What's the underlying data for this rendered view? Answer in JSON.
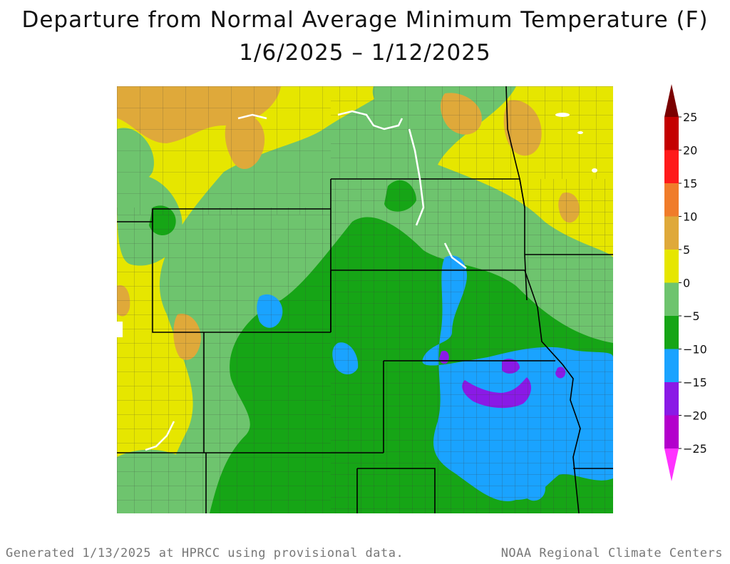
{
  "title_line1": "Departure from Normal Average Minimum Temperature (F)",
  "title_line2": "1/6/2025 – 1/12/2025",
  "footer_left": "Generated 1/13/2025 at HPRCC using provisional data.",
  "footer_right": "NOAA Regional Climate Centers",
  "legend": {
    "bins": [
      {
        "from": 25,
        "to": 30,
        "color": "#7a0000"
      },
      {
        "from": 20,
        "to": 25,
        "color": "#c40000"
      },
      {
        "from": 15,
        "to": 20,
        "color": "#ff1a1a"
      },
      {
        "from": 10,
        "to": 15,
        "color": "#f07c2a"
      },
      {
        "from": 5,
        "to": 10,
        "color": "#dfa93a"
      },
      {
        "from": 0,
        "to": 5,
        "color": "#e6e600"
      },
      {
        "from": -5,
        "to": 0,
        "color": "#6ec46e"
      },
      {
        "from": -10,
        "to": -5,
        "color": "#16a516"
      },
      {
        "from": -15,
        "to": -10,
        "color": "#1aa3ff"
      },
      {
        "from": -20,
        "to": -15,
        "color": "#8a1ae6"
      },
      {
        "from": -25,
        "to": -20,
        "color": "#b300cc"
      },
      {
        "from": -30,
        "to": -25,
        "color": "#ff33ff"
      }
    ],
    "tick_labels": [
      "25",
      "20",
      "15",
      "10",
      "5",
      "0",
      "−5",
      "−10",
      "−15",
      "−20",
      "−25"
    ]
  },
  "map": {
    "category_colors": {
      "plus5_10": "#dfa93a",
      "zero_5": "#e6e600",
      "minus0_5": "#6ec46e",
      "minus5_10": "#16a516",
      "minus10_15": "#1aa3ff",
      "minus15_20": "#8a1ae6",
      "water": "#ffffff",
      "state_border": "#000000",
      "county_line": "#3c3c3c"
    }
  }
}
